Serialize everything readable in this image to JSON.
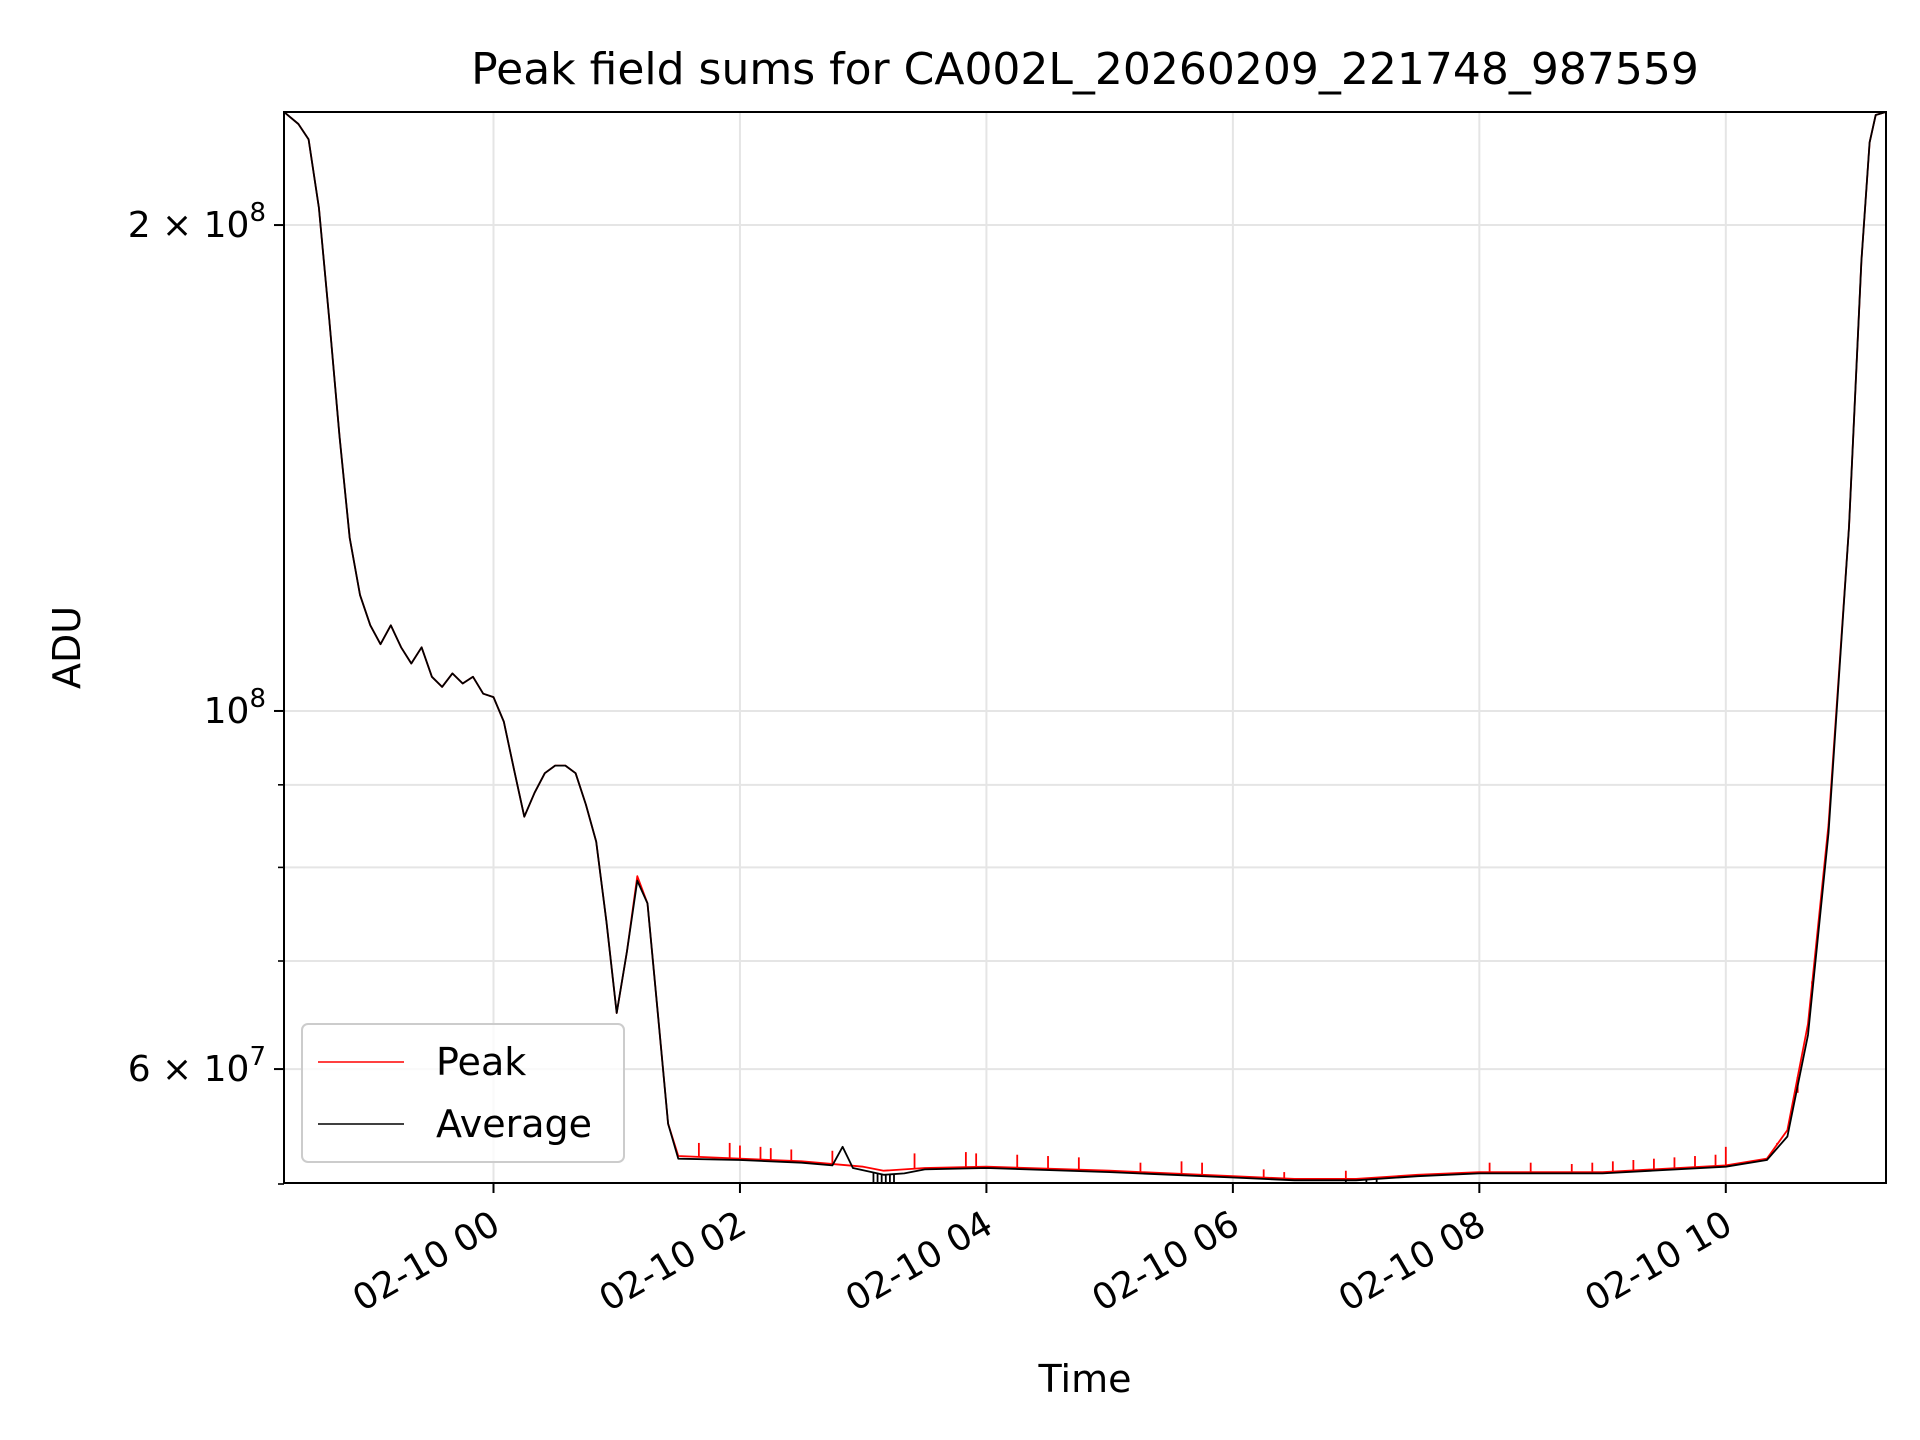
{
  "chart_data": {
    "type": "line",
    "title": "Peak field sums for CA002L_20260209_221748_987559",
    "xlabel": "Time",
    "ylabel": "ADU",
    "x_scale": "time",
    "y_scale": "log",
    "xlim": [
      "2026-02-09 22:18",
      "2026-02-10 11:18"
    ],
    "ylim": [
      51000000,
      235000000
    ],
    "grid": true,
    "legend_position": "lower left",
    "x_ticks": [
      {
        "t": "2026-02-10 00:00",
        "label": "02-10 00"
      },
      {
        "t": "2026-02-10 02:00",
        "label": "02-10 02"
      },
      {
        "t": "2026-02-10 04:00",
        "label": "02-10 04"
      },
      {
        "t": "2026-02-10 06:00",
        "label": "02-10 06"
      },
      {
        "t": "2026-02-10 08:00",
        "label": "02-10 08"
      },
      {
        "t": "2026-02-10 10:00",
        "label": "02-10 10"
      }
    ],
    "y_major_ticks": [
      {
        "value": 60000000,
        "mantissa": "6",
        "exponent": "7"
      },
      {
        "value": 100000000,
        "mantissa": "",
        "exponent": "8"
      },
      {
        "value": 200000000,
        "mantissa": "2",
        "exponent": "8"
      }
    ],
    "y_minor_ticks": [
      70000000,
      80000000,
      90000000
    ],
    "series": [
      {
        "name": "Peak",
        "color": "#ff0000",
        "points": [
          [
            "2026-02-09 22:18",
            235000000
          ],
          [
            "2026-02-09 22:25",
            231000000
          ],
          [
            "2026-02-09 22:30",
            226000000
          ],
          [
            "2026-02-09 22:35",
            205000000
          ],
          [
            "2026-02-09 22:40",
            175000000
          ],
          [
            "2026-02-09 22:45",
            148000000
          ],
          [
            "2026-02-09 22:50",
            128000000
          ],
          [
            "2026-02-09 22:55",
            118000000
          ],
          [
            "2026-02-09 23:00",
            113000000
          ],
          [
            "2026-02-09 23:05",
            110000000
          ],
          [
            "2026-02-09 23:10",
            113000000
          ],
          [
            "2026-02-09 23:15",
            109500000
          ],
          [
            "2026-02-09 23:20",
            107000000
          ],
          [
            "2026-02-09 23:25",
            109500000
          ],
          [
            "2026-02-09 23:30",
            105000000
          ],
          [
            "2026-02-09 23:35",
            103500000
          ],
          [
            "2026-02-09 23:40",
            105500000
          ],
          [
            "2026-02-09 23:45",
            104000000
          ],
          [
            "2026-02-09 23:50",
            105000000
          ],
          [
            "2026-02-09 23:55",
            102500000
          ],
          [
            "2026-02-10 00:00",
            102000000
          ],
          [
            "2026-02-10 00:05",
            98500000
          ],
          [
            "2026-02-10 00:10",
            92000000
          ],
          [
            "2026-02-10 00:15",
            86000000
          ],
          [
            "2026-02-10 00:20",
            89000000
          ],
          [
            "2026-02-10 00:25",
            91500000
          ],
          [
            "2026-02-10 00:30",
            92500000
          ],
          [
            "2026-02-10 00:35",
            92500000
          ],
          [
            "2026-02-10 00:40",
            91500000
          ],
          [
            "2026-02-10 00:45",
            87500000
          ],
          [
            "2026-02-10 00:50",
            83000000
          ],
          [
            "2026-02-10 00:55",
            74000000
          ],
          [
            "2026-02-10 01:00",
            65000000
          ],
          [
            "2026-02-10 01:05",
            71000000
          ],
          [
            "2026-02-10 01:10",
            79000000
          ],
          [
            "2026-02-10 01:15",
            76000000
          ],
          [
            "2026-02-10 01:20",
            65000000
          ],
          [
            "2026-02-10 01:25",
            55500000
          ],
          [
            "2026-02-10 01:30",
            53000000
          ],
          [
            "2026-02-10 02:00",
            52800000
          ],
          [
            "2026-02-10 02:30",
            52600000
          ],
          [
            "2026-02-10 03:00",
            52200000
          ],
          [
            "2026-02-10 03:10",
            51900000
          ],
          [
            "2026-02-10 03:30",
            52100000
          ],
          [
            "2026-02-10 04:00",
            52200000
          ],
          [
            "2026-02-10 05:00",
            51900000
          ],
          [
            "2026-02-10 06:00",
            51500000
          ],
          [
            "2026-02-10 06:30",
            51300000
          ],
          [
            "2026-02-10 07:00",
            51300000
          ],
          [
            "2026-02-10 07:30",
            51600000
          ],
          [
            "2026-02-10 08:00",
            51800000
          ],
          [
            "2026-02-10 09:00",
            51800000
          ],
          [
            "2026-02-10 10:00",
            52300000
          ],
          [
            "2026-02-10 10:20",
            52800000
          ],
          [
            "2026-02-10 10:30",
            55000000
          ],
          [
            "2026-02-10 10:40",
            64000000
          ],
          [
            "2026-02-10 10:50",
            85000000
          ],
          [
            "2026-02-10 11:00",
            130000000
          ],
          [
            "2026-02-10 11:06",
            190000000
          ],
          [
            "2026-02-10 11:10",
            225000000
          ],
          [
            "2026-02-10 11:13",
            234000000
          ],
          [
            "2026-02-10 11:18",
            235000000
          ]
        ],
        "spikes": [
          [
            "2026-02-10 01:40",
            54000000
          ],
          [
            "2026-02-10 01:55",
            54000000
          ],
          [
            "2026-02-10 02:00",
            53800000
          ],
          [
            "2026-02-10 02:10",
            53700000
          ],
          [
            "2026-02-10 02:15",
            53600000
          ],
          [
            "2026-02-10 02:25",
            53500000
          ],
          [
            "2026-02-10 02:45",
            53400000
          ],
          [
            "2026-02-10 03:25",
            53200000
          ],
          [
            "2026-02-10 03:50",
            53300000
          ],
          [
            "2026-02-10 03:55",
            53200000
          ],
          [
            "2026-02-10 04:15",
            53100000
          ],
          [
            "2026-02-10 04:30",
            53000000
          ],
          [
            "2026-02-10 04:45",
            52900000
          ],
          [
            "2026-02-10 05:15",
            52500000
          ],
          [
            "2026-02-10 05:35",
            52600000
          ],
          [
            "2026-02-10 05:45",
            52500000
          ],
          [
            "2026-02-10 06:15",
            52000000
          ],
          [
            "2026-02-10 06:25",
            51800000
          ],
          [
            "2026-02-10 06:55",
            51900000
          ],
          [
            "2026-02-10 08:05",
            52500000
          ],
          [
            "2026-02-10 08:25",
            52500000
          ],
          [
            "2026-02-10 08:45",
            52400000
          ],
          [
            "2026-02-10 08:55",
            52500000
          ],
          [
            "2026-02-10 09:05",
            52600000
          ],
          [
            "2026-02-10 09:15",
            52700000
          ],
          [
            "2026-02-10 09:25",
            52800000
          ],
          [
            "2026-02-10 09:35",
            52900000
          ],
          [
            "2026-02-10 09:45",
            53000000
          ],
          [
            "2026-02-10 09:55",
            53100000
          ],
          [
            "2026-02-10 10:00",
            53700000
          ],
          [
            "2026-02-10 10:25",
            54000000
          ],
          [
            "2026-02-10 10:35",
            58000000
          ],
          [
            "2026-02-10 10:42",
            68000000
          ]
        ]
      },
      {
        "name": "Average",
        "color": "#000000",
        "points": [
          [
            "2026-02-09 22:18",
            235000000
          ],
          [
            "2026-02-09 22:25",
            231000000
          ],
          [
            "2026-02-09 22:30",
            226000000
          ],
          [
            "2026-02-09 22:35",
            205000000
          ],
          [
            "2026-02-09 22:40",
            175000000
          ],
          [
            "2026-02-09 22:45",
            148000000
          ],
          [
            "2026-02-09 22:50",
            128000000
          ],
          [
            "2026-02-09 22:55",
            118000000
          ],
          [
            "2026-02-09 23:00",
            113000000
          ],
          [
            "2026-02-09 23:05",
            110000000
          ],
          [
            "2026-02-09 23:10",
            113000000
          ],
          [
            "2026-02-09 23:15",
            109500000
          ],
          [
            "2026-02-09 23:20",
            107000000
          ],
          [
            "2026-02-09 23:25",
            109500000
          ],
          [
            "2026-02-09 23:30",
            105000000
          ],
          [
            "2026-02-09 23:35",
            103500000
          ],
          [
            "2026-02-09 23:40",
            105500000
          ],
          [
            "2026-02-09 23:45",
            104000000
          ],
          [
            "2026-02-09 23:50",
            105000000
          ],
          [
            "2026-02-09 23:55",
            102500000
          ],
          [
            "2026-02-10 00:00",
            102000000
          ],
          [
            "2026-02-10 00:05",
            98500000
          ],
          [
            "2026-02-10 00:10",
            92000000
          ],
          [
            "2026-02-10 00:15",
            86000000
          ],
          [
            "2026-02-10 00:20",
            89000000
          ],
          [
            "2026-02-10 00:25",
            91500000
          ],
          [
            "2026-02-10 00:30",
            92500000
          ],
          [
            "2026-02-10 00:35",
            92500000
          ],
          [
            "2026-02-10 00:40",
            91500000
          ],
          [
            "2026-02-10 00:45",
            87500000
          ],
          [
            "2026-02-10 00:50",
            83000000
          ],
          [
            "2026-02-10 00:55",
            74000000
          ],
          [
            "2026-02-10 01:00",
            65000000
          ],
          [
            "2026-02-10 01:05",
            71000000
          ],
          [
            "2026-02-10 01:10",
            78500000
          ],
          [
            "2026-02-10 01:15",
            76000000
          ],
          [
            "2026-02-10 01:20",
            65000000
          ],
          [
            "2026-02-10 01:25",
            55500000
          ],
          [
            "2026-02-10 01:30",
            52800000
          ],
          [
            "2026-02-10 02:00",
            52700000
          ],
          [
            "2026-02-10 02:30",
            52500000
          ],
          [
            "2026-02-10 02:45",
            52300000
          ],
          [
            "2026-02-10 02:50",
            53700000
          ],
          [
            "2026-02-10 02:55",
            52100000
          ],
          [
            "2026-02-10 03:10",
            51600000
          ],
          [
            "2026-02-10 03:20",
            51700000
          ],
          [
            "2026-02-10 03:30",
            52000000
          ],
          [
            "2026-02-10 04:00",
            52100000
          ],
          [
            "2026-02-10 05:00",
            51800000
          ],
          [
            "2026-02-10 06:00",
            51400000
          ],
          [
            "2026-02-10 06:30",
            51200000
          ],
          [
            "2026-02-10 07:00",
            51200000
          ],
          [
            "2026-02-10 07:30",
            51500000
          ],
          [
            "2026-02-10 08:00",
            51700000
          ],
          [
            "2026-02-10 09:00",
            51700000
          ],
          [
            "2026-02-10 10:00",
            52200000
          ],
          [
            "2026-02-10 10:20",
            52700000
          ],
          [
            "2026-02-10 10:30",
            54500000
          ],
          [
            "2026-02-10 10:40",
            63000000
          ],
          [
            "2026-02-10 10:50",
            84000000
          ],
          [
            "2026-02-10 11:00",
            130000000
          ],
          [
            "2026-02-10 11:06",
            190000000
          ],
          [
            "2026-02-10 11:10",
            225000000
          ],
          [
            "2026-02-10 11:13",
            234000000
          ],
          [
            "2026-02-10 11:18",
            235000000
          ]
        ],
        "dips": [
          [
            "2026-02-10 03:05",
            51000000
          ],
          [
            "2026-02-10 03:07",
            51000000
          ],
          [
            "2026-02-10 03:09",
            51000000
          ],
          [
            "2026-02-10 03:11",
            51000000
          ],
          [
            "2026-02-10 03:13",
            51000000
          ],
          [
            "2026-02-10 03:15",
            51000000
          ],
          [
            "2026-02-10 06:55",
            51000000
          ],
          [
            "2026-02-10 07:05",
            51000000
          ],
          [
            "2026-02-10 07:10",
            51000000
          ]
        ]
      }
    ]
  }
}
